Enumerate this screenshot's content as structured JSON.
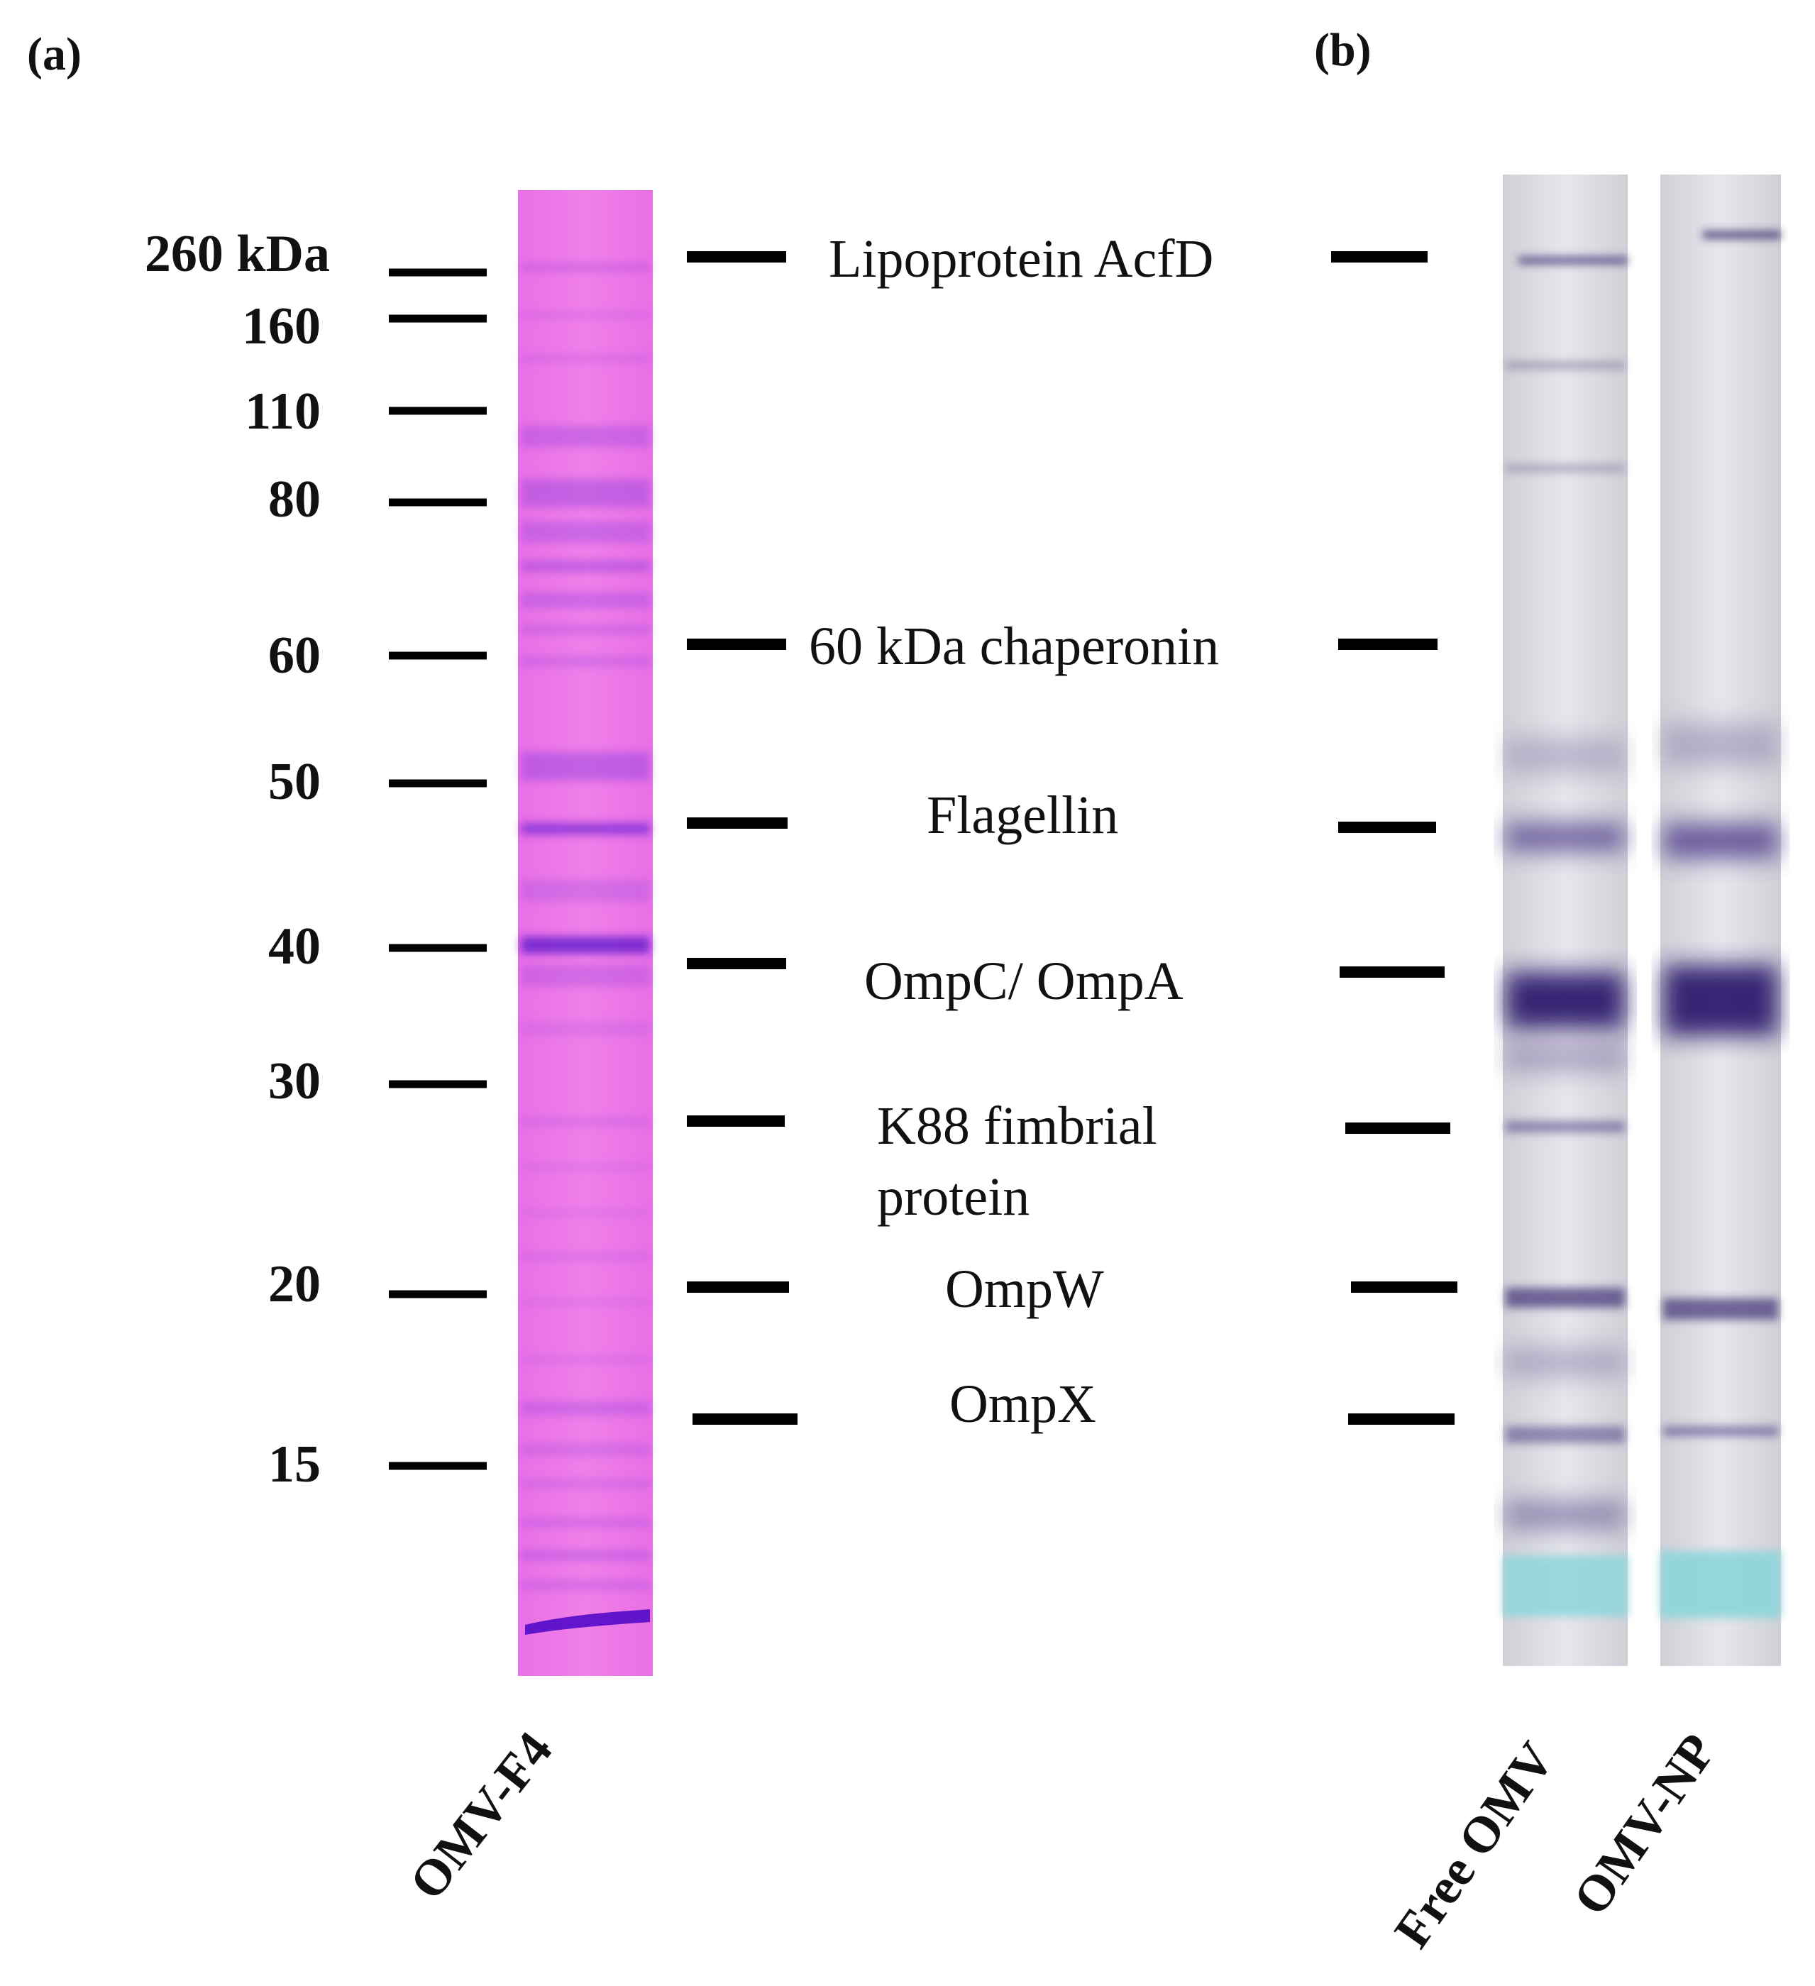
{
  "panels": [
    {
      "id": "a",
      "label": "(a)"
    },
    {
      "id": "b",
      "label": "(b)"
    }
  ],
  "ladder": {
    "markers": [
      {
        "label": "260 kDa",
        "kda": 260
      },
      {
        "label": "160",
        "kda": 160
      },
      {
        "label": "110",
        "kda": 110
      },
      {
        "label": "80",
        "kda": 80
      },
      {
        "label": "60",
        "kda": 60
      },
      {
        "label": "50",
        "kda": 50
      },
      {
        "label": "40",
        "kda": 40
      },
      {
        "label": "30",
        "kda": 30
      },
      {
        "label": "20",
        "kda": 20
      },
      {
        "label": "15",
        "kda": 15
      }
    ]
  },
  "proteins": [
    {
      "label": "Lipoprotein AcfD"
    },
    {
      "label": "60 kDa chaperonin"
    },
    {
      "label": "Flagellin"
    },
    {
      "label": "OmpC/ OmpA"
    },
    {
      "label": "K88 fimbrial",
      "label2": "protein"
    },
    {
      "label": "OmpW"
    },
    {
      "label": "OmpX"
    }
  ],
  "lanes": [
    {
      "label": "OMV-F4",
      "stain_color": "#e45ce0",
      "band_color": "#6a1fd0"
    },
    {
      "label": "Free OMV",
      "stain_color": "#d6d6dc",
      "band_color": "#3b2a78"
    },
    {
      "label": "OMV-NP",
      "stain_color": "#dcdce2",
      "band_color": "#3b2a78"
    }
  ],
  "dye_front_color": "#8fd6dc"
}
